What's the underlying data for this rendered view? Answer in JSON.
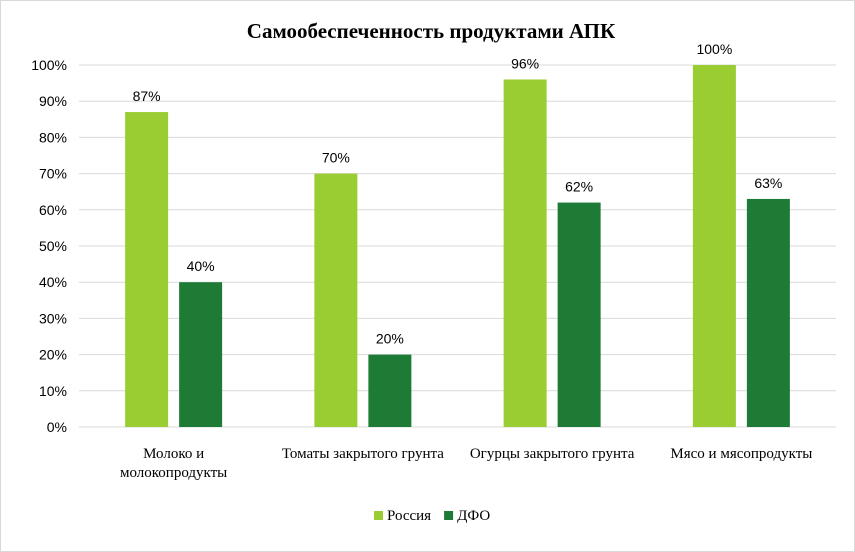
{
  "chart_data": {
    "type": "bar",
    "title": "Самообеспеченность продуктами АПК",
    "categories": [
      [
        "Молоко и",
        "молокопродукты"
      ],
      [
        "Томаты закрытого грунта"
      ],
      [
        "Огурцы закрытого грунта"
      ],
      [
        "Мясо и мясопродукты"
      ]
    ],
    "series": [
      {
        "name": "Россия",
        "color": "#9ACD32",
        "values": [
          87,
          70,
          96,
          100
        ],
        "labels": [
          "87%",
          "70%",
          "96%",
          "100%"
        ]
      },
      {
        "name": "ДФО",
        "color": "#1E7B36",
        "values": [
          40,
          20,
          62,
          63
        ],
        "labels": [
          "40%",
          "20%",
          "62%",
          "63%"
        ]
      }
    ],
    "ylim": [
      0,
      100
    ],
    "yticks": [
      "0%",
      "10%",
      "20%",
      "30%",
      "40%",
      "50%",
      "60%",
      "70%",
      "80%",
      "90%",
      "100%"
    ],
    "xlabel": "",
    "ylabel": "",
    "grid": true,
    "gridColor": "#d9d9d9",
    "legend": "bottom"
  }
}
